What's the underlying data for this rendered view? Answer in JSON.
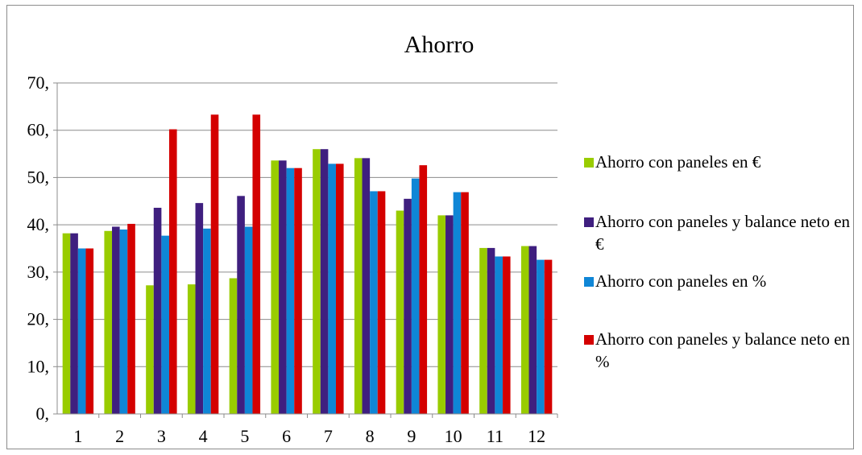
{
  "chart_data": {
    "type": "bar",
    "title": "Ahorro",
    "xlabel": "",
    "ylabel": "",
    "ylim": [
      0,
      70
    ],
    "yticks": [
      0,
      10,
      20,
      30,
      40,
      50,
      60,
      70
    ],
    "ytick_labels": [
      "0,",
      "10,",
      "20,",
      "30,",
      "40,",
      "50,",
      "60,",
      "70,"
    ],
    "categories": [
      "1",
      "2",
      "3",
      "4",
      "5",
      "6",
      "7",
      "8",
      "9",
      "10",
      "11",
      "12"
    ],
    "grid": true,
    "legend_position": "right",
    "series": [
      {
        "name": "Ahorro con paneles en €",
        "color": "#99cc00",
        "values": [
          38.2,
          38.7,
          27.2,
          27.4,
          28.7,
          53.6,
          56.0,
          54.1,
          43.0,
          42.0,
          35.1,
          35.5
        ]
      },
      {
        "name": "Ahorro con paneles y balance neto en €",
        "color": "#3f1f7f",
        "values": [
          38.2,
          39.6,
          43.6,
          44.6,
          46.1,
          53.6,
          56.0,
          54.1,
          45.5,
          42.0,
          35.1,
          35.5
        ]
      },
      {
        "name": "Ahorro con paneles en %",
        "color": "#0f86d6",
        "values": [
          35.0,
          39.0,
          37.7,
          39.2,
          39.6,
          52.0,
          52.9,
          47.1,
          49.8,
          46.9,
          33.3,
          32.6
        ]
      },
      {
        "name": "Ahorro con paneles y balance neto en %",
        "color": "#d40000",
        "values": [
          35.0,
          40.2,
          60.2,
          63.3,
          63.3,
          52.0,
          52.9,
          47.1,
          52.6,
          46.9,
          33.3,
          32.6
        ]
      }
    ]
  }
}
